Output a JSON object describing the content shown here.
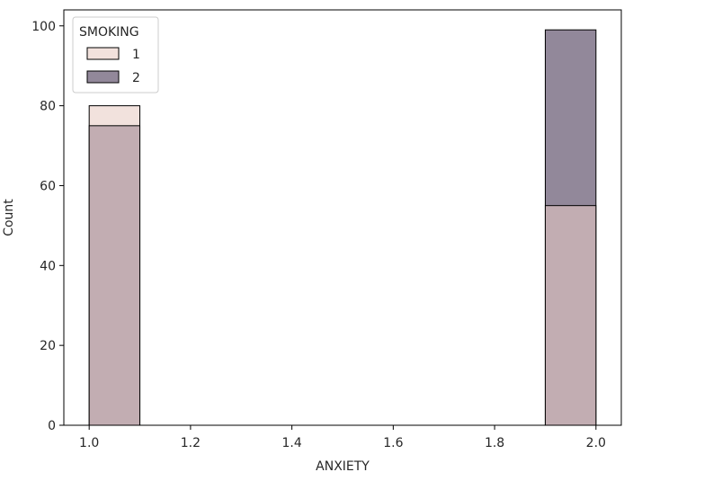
{
  "chart_data": {
    "type": "bar",
    "subtype": "histogram-overlay",
    "xlabel": "ANXIETY",
    "ylabel": "Count",
    "xlim": [
      0.95,
      2.05
    ],
    "ylim": [
      0,
      104
    ],
    "x_ticks": [
      "1.0",
      "1.2",
      "1.4",
      "1.6",
      "1.8",
      "2.0"
    ],
    "y_ticks": [
      "0",
      "20",
      "40",
      "60",
      "80",
      "100"
    ],
    "bin_edges": [
      [
        1.0,
        1.1
      ],
      [
        1.9,
        2.0
      ]
    ],
    "legend": {
      "title": "SMOKING",
      "position": "top-left"
    },
    "series": [
      {
        "name": "1",
        "values": [
          80,
          55
        ],
        "color": "#f2e2dd"
      },
      {
        "name": "2",
        "values": [
          75,
          99
        ],
        "color": "#92889a"
      }
    ],
    "overlap_color": "#c2adb2",
    "grid": false
  }
}
